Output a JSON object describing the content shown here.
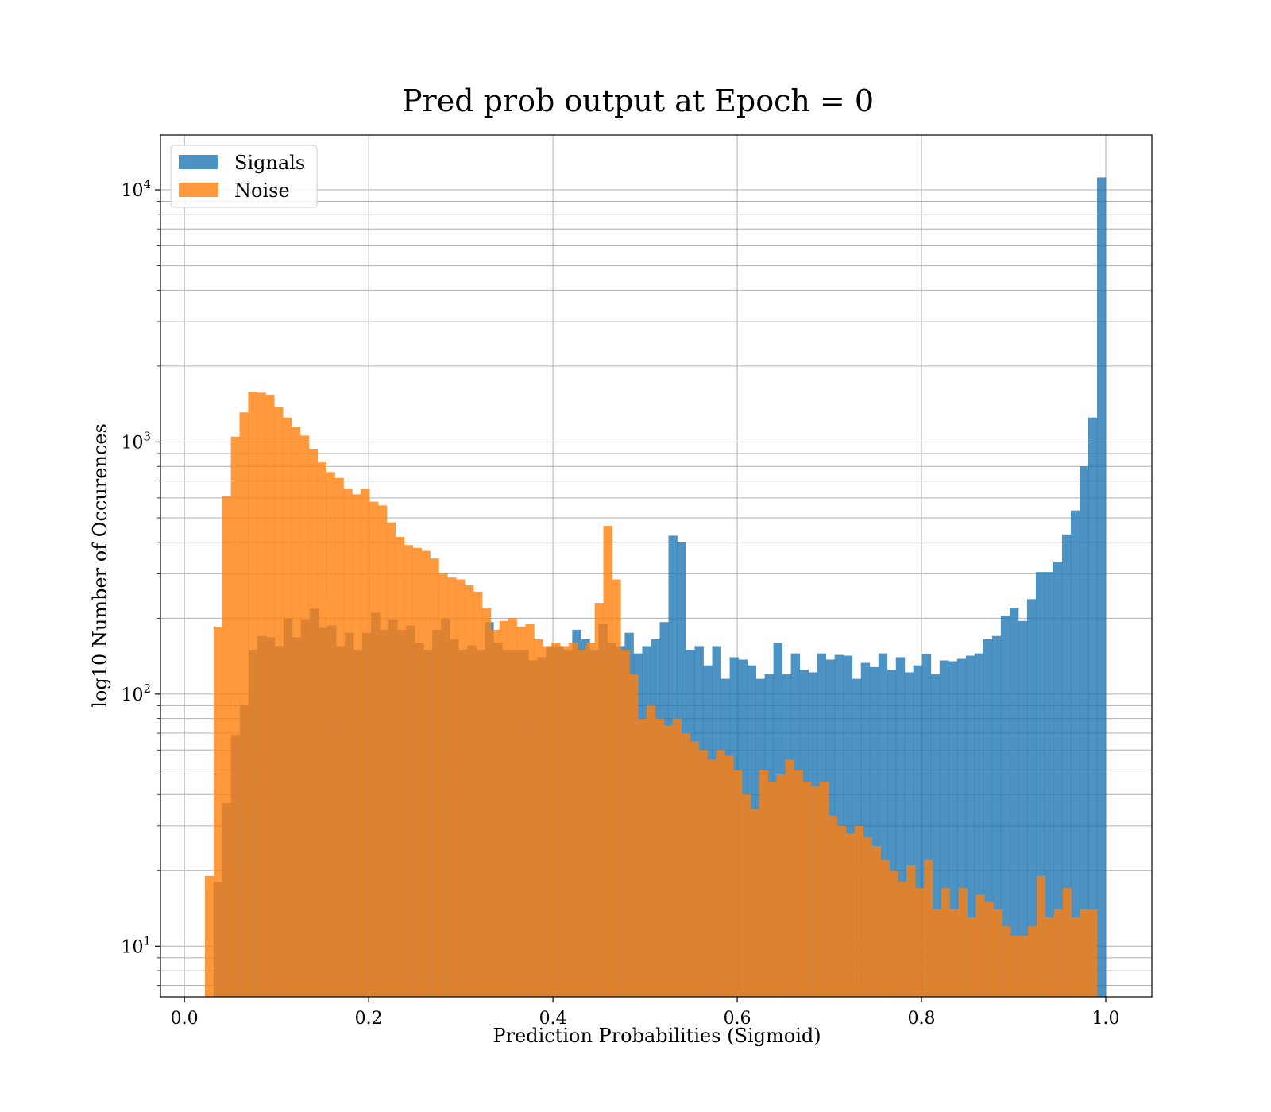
{
  "chart_data": {
    "type": "histogram",
    "title": "Pred prob output at Epoch = 0",
    "xlabel": "Prediction Probabilities (Sigmoid)",
    "ylabel": "log10 Number of Occurences",
    "xlim": [
      -0.026,
      1.05
    ],
    "ylim": [
      6.3,
      16500
    ],
    "yscale": "log",
    "grid": true,
    "legend_position": "top-left",
    "x_ticks": [
      "0.0",
      "0.2",
      "0.4",
      "0.6",
      "0.8",
      "1.0"
    ],
    "y_ticks": [
      {
        "base": "10",
        "exp": "1",
        "value": 10
      },
      {
        "base": "10",
        "exp": "2",
        "value": 100
      },
      {
        "base": "10",
        "exp": "3",
        "value": 1000
      },
      {
        "base": "10",
        "exp": "4",
        "value": 10000
      }
    ],
    "series": [
      {
        "name": "Signals",
        "color": "#1f77b4",
        "alpha": 0.8,
        "bin_range": [
          0.0222,
          1.0
        ],
        "values": [
          0,
          18,
          37,
          69,
          90,
          150,
          170,
          168,
          155,
          200,
          168,
          198,
          218,
          183,
          187,
          155,
          175,
          150,
          175,
          210,
          180,
          198,
          180,
          187,
          160,
          150,
          180,
          200,
          165,
          150,
          156,
          150,
          193,
          160,
          150,
          150,
          150,
          136,
          140,
          155,
          155,
          150,
          180,
          165,
          150,
          190,
          160,
          155,
          175,
          145,
          155,
          165,
          193,
          425,
          400,
          150,
          155,
          130,
          155,
          115,
          140,
          137,
          130,
          115,
          120,
          160,
          120,
          145,
          125,
          122,
          145,
          137,
          143,
          142,
          115,
          133,
          128,
          145,
          125,
          140,
          122,
          130,
          144,
          120,
          136,
          135,
          138,
          142,
          145,
          165,
          170,
          205,
          220,
          195,
          238,
          305,
          305,
          335,
          430,
          535,
          800,
          1250,
          11200
        ]
      },
      {
        "name": "Noise",
        "color": "#ff7f0e",
        "alpha": 0.8,
        "bin_range": [
          0.0222,
          1.0
        ],
        "values": [
          19,
          185,
          610,
          1050,
          1310,
          1580,
          1570,
          1540,
          1380,
          1250,
          1150,
          1060,
          940,
          830,
          760,
          720,
          650,
          620,
          650,
          580,
          560,
          480,
          420,
          390,
          380,
          370,
          345,
          300,
          290,
          285,
          270,
          255,
          220,
          180,
          195,
          200,
          185,
          190,
          165,
          155,
          160,
          155,
          160,
          150,
          160,
          230,
          465,
          285,
          150,
          120,
          80,
          90,
          80,
          75,
          80,
          70,
          65,
          60,
          55,
          60,
          57,
          50,
          40,
          35,
          50,
          45,
          48,
          55,
          50,
          45,
          43,
          45,
          33,
          30,
          28,
          30,
          27,
          25,
          22,
          20,
          18,
          21,
          17,
          22,
          14,
          17,
          14,
          17,
          13,
          16,
          15,
          14,
          12,
          11,
          11,
          12,
          19,
          13,
          14,
          17,
          13,
          14,
          14,
          0
        ]
      }
    ]
  }
}
